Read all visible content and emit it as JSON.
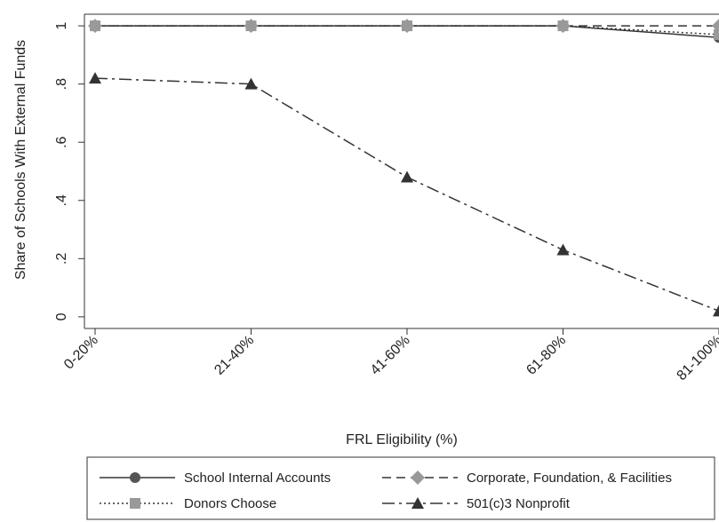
{
  "chart_data": {
    "type": "line",
    "x_label": "FRL Eligibility (%)",
    "y_label": "Share of Schools With External Funds",
    "categories": [
      "0-20%",
      "21-40%",
      "41-60%",
      "61-80%",
      "81-100%"
    ],
    "ylim": [
      -0.04,
      1.04
    ],
    "yticks": [
      0,
      {
        "value": 0.2,
        "label": ".2"
      },
      {
        "value": 0.4,
        "label": ".4"
      },
      {
        "value": 0.6,
        "label": ".6"
      },
      {
        "value": 0.8,
        "label": ".8"
      },
      1
    ],
    "series": [
      {
        "name": "School Internal Accounts",
        "color": "#333333",
        "dash": "solid",
        "marker": "circle",
        "marker_color": "#555555",
        "values": [
          1,
          1,
          1,
          1,
          0.96
        ]
      },
      {
        "name": "Corporate, Foundation, & Facilities",
        "color": "#333333",
        "dash": "dashed",
        "marker": "diamond",
        "marker_color": "#999999",
        "values": [
          1,
          1,
          1,
          1,
          1
        ]
      },
      {
        "name": "Donors Choose",
        "color": "#333333",
        "dash": "dotted",
        "marker": "square",
        "marker_color": "#999999",
        "values": [
          1,
          1,
          1,
          1,
          0.97
        ]
      },
      {
        "name": "501(c)3 Nonprofit",
        "color": "#333333",
        "dash": "dashdot",
        "marker": "triangle",
        "marker_color": "#333333",
        "values": [
          0.82,
          0.8,
          0.48,
          0.23,
          0.02
        ]
      }
    ]
  }
}
